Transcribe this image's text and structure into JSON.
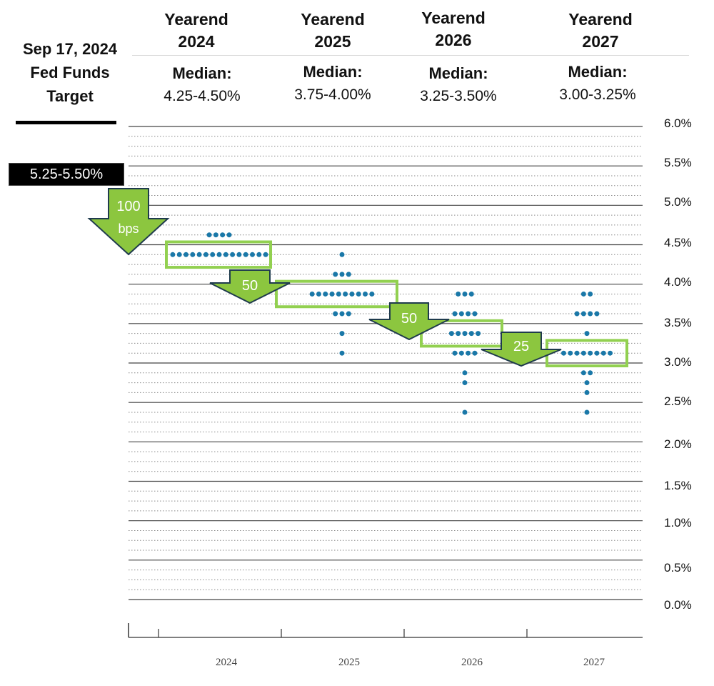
{
  "left_header": {
    "date": "Sep 17, 2024",
    "line2": "Fed Funds",
    "line3": "Target"
  },
  "current_target": "5.25-5.50%",
  "columns": [
    {
      "title_line1": "Yearend",
      "title_line2": "2024",
      "median_label": "Median:",
      "median_value": "4.25-4.50%"
    },
    {
      "title_line1": "Yearend",
      "title_line2": "2025",
      "median_label": "Median:",
      "median_value": "3.75-4.00%"
    },
    {
      "title_line1": "Yearend",
      "title_line2": "2026",
      "median_label": "Median:",
      "median_value": "3.25-3.50%"
    },
    {
      "title_line1": "Yearend",
      "title_line2": "2027",
      "median_label": "Median:",
      "median_value": "3.00-3.25%"
    }
  ],
  "arrows": [
    {
      "line1": "100",
      "line2": "bps"
    },
    {
      "line1": "50",
      "line2": ""
    },
    {
      "line1": "50",
      "line2": ""
    },
    {
      "line1": "25",
      "line2": ""
    }
  ],
  "colors": {
    "dot": "#1a78a8",
    "arrow_fill": "#8cc63f",
    "arrow_stroke": "#1f3b4d",
    "box": "#92d050"
  },
  "chart_data": {
    "type": "scatter",
    "title": "",
    "xlabel": "",
    "ylabel": "",
    "ylim": [
      0,
      6
    ],
    "y_ticks": [
      "6.0%",
      "5.5%",
      "5.0%",
      "4.5%",
      "4.0%",
      "3.5%",
      "3.0%",
      "2.5%",
      "2.0%",
      "1.5%",
      "1.0%",
      "0.5%",
      "0.0%"
    ],
    "categories": [
      "2024",
      "2025",
      "2026",
      "2027"
    ],
    "grid": true,
    "series": [
      {
        "x": "2024",
        "dots": [
          {
            "y": 4.625,
            "count": 4
          },
          {
            "y": 4.375,
            "count": 15
          }
        ]
      },
      {
        "x": "2025",
        "dots": [
          {
            "y": 4.375,
            "count": 1
          },
          {
            "y": 4.125,
            "count": 3
          },
          {
            "y": 3.875,
            "count": 10
          },
          {
            "y": 3.625,
            "count": 3
          },
          {
            "y": 3.375,
            "count": 1
          },
          {
            "y": 3.125,
            "count": 1
          }
        ]
      },
      {
        "x": "2026",
        "dots": [
          {
            "y": 3.875,
            "count": 3
          },
          {
            "y": 3.625,
            "count": 4
          },
          {
            "y": 3.375,
            "count": 5
          },
          {
            "y": 3.125,
            "count": 4
          },
          {
            "y": 2.875,
            "count": 1
          },
          {
            "y": 2.75,
            "count": 1
          },
          {
            "y": 2.375,
            "count": 1
          }
        ]
      },
      {
        "x": "2027",
        "dots": [
          {
            "y": 3.875,
            "count": 2
          },
          {
            "y": 3.625,
            "count": 4
          },
          {
            "y": 3.375,
            "count": 1
          },
          {
            "y": 3.125,
            "count": 8
          },
          {
            "y": 2.875,
            "count": 2
          },
          {
            "y": 2.75,
            "count": 1
          },
          {
            "y": 2.625,
            "count": 1
          },
          {
            "y": 2.375,
            "count": 1
          }
        ]
      }
    ],
    "median_ranges": [
      {
        "x": "2024",
        "low": 4.25,
        "high": 4.5
      },
      {
        "x": "2025",
        "low": 3.75,
        "high": 4.0
      },
      {
        "x": "2026",
        "low": 3.25,
        "high": 3.5
      },
      {
        "x": "2027",
        "low": 3.0,
        "high": 3.25
      }
    ]
  }
}
